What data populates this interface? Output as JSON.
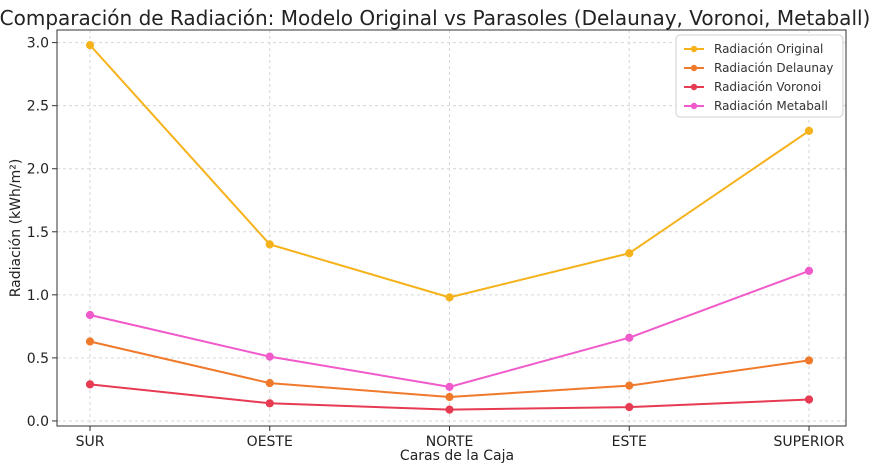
{
  "chart_data": {
    "type": "line",
    "title": "Comparación de Radiación: Modelo Original vs Parasoles (Delaunay, Voronoi, Metaball)",
    "xlabel": "Caras de la Caja",
    "ylabel": "Radiación (kWh/m²)",
    "categories": [
      "SUR",
      "OESTE",
      "NORTE",
      "ESTE",
      "SUPERIOR"
    ],
    "ylim": [
      -0.04,
      3.1
    ],
    "yticks": [
      0.0,
      0.5,
      1.0,
      1.5,
      2.0,
      2.5,
      3.0
    ],
    "grid": true,
    "legend_position": "top-right",
    "series": [
      {
        "name": "Radiación Original",
        "color": "#f5b21b",
        "values": [
          2.98,
          1.4,
          0.98,
          1.33,
          2.3
        ]
      },
      {
        "name": "Radiación Delaunay",
        "color": "#f07a2b",
        "values": [
          0.63,
          0.3,
          0.19,
          0.28,
          0.48
        ]
      },
      {
        "name": "Radiación Voronoi",
        "color": "#e63b52",
        "values": [
          0.29,
          0.14,
          0.09,
          0.11,
          0.17
        ]
      },
      {
        "name": "Radiación Metaball",
        "color": "#f05acb",
        "values": [
          0.84,
          0.51,
          0.27,
          0.66,
          1.19
        ]
      }
    ]
  }
}
